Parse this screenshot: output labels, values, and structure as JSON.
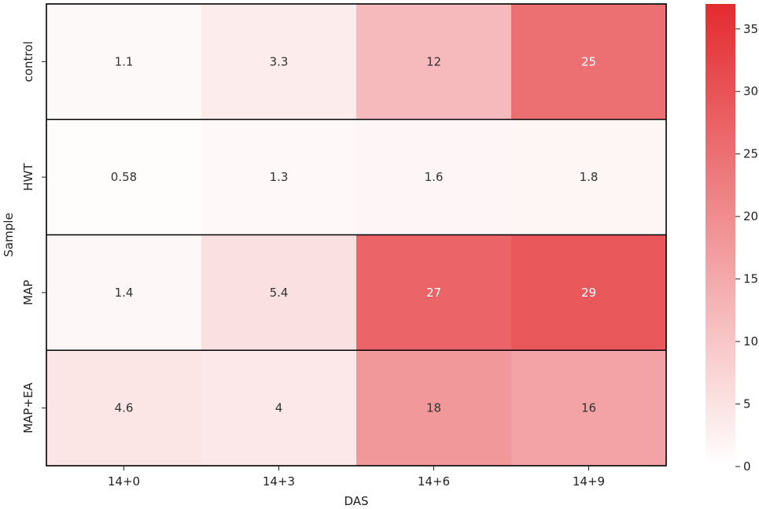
{
  "chart_data": {
    "type": "heatmap",
    "xlabel": "DAS",
    "ylabel": "Sample",
    "x_categories": [
      "14+0",
      "14+3",
      "14+6",
      "14+9"
    ],
    "y_categories": [
      "control",
      "HWT",
      "MAP",
      "MAP+EA"
    ],
    "values": [
      [
        1.1,
        3.3,
        12,
        25
      ],
      [
        0.58,
        1.3,
        1.6,
        1.8
      ],
      [
        1.4,
        5.4,
        27,
        29
      ],
      [
        4.6,
        4,
        18,
        16
      ]
    ],
    "cell_labels": [
      [
        "1.1",
        "3.3",
        "12",
        "25"
      ],
      [
        "0.58",
        "1.3",
        "1.6",
        "1.8"
      ],
      [
        "1.4",
        "5.4",
        "27",
        "29"
      ],
      [
        "4.6",
        "4",
        "18",
        "16"
      ]
    ],
    "colorbar": {
      "vmin": 0,
      "vmax": 37,
      "ticks": [
        0,
        5,
        10,
        15,
        20,
        25,
        30,
        35
      ],
      "tick_labels": [
        "0",
        "5",
        "10",
        "15",
        "20",
        "25",
        "30",
        "35"
      ],
      "color_low": "#ffffff",
      "color_high": "#e32b2f"
    },
    "text_color_dark": "#333333",
    "text_color_light": "#ffffff",
    "row_separators": true,
    "grid": false
  }
}
